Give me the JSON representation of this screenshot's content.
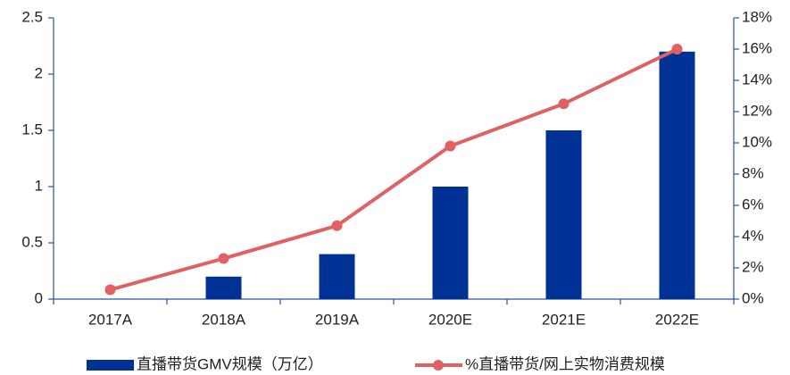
{
  "chart_data": {
    "type": "bar",
    "categories": [
      "2017A",
      "2018A",
      "2019A",
      "2020E",
      "2021E",
      "2022E"
    ],
    "series": [
      {
        "name": "直播带货GMV规模（万亿）",
        "color": "#003194",
        "values": [
          0,
          0.2,
          0.4,
          1.0,
          1.5,
          2.2
        ]
      },
      {
        "name": "%直播带货/网上实物消费规模",
        "color": "#e06163",
        "type": "line",
        "axis": "y2",
        "values": [
          0.6,
          2.6,
          4.7,
          9.8,
          12.5,
          16.0
        ]
      }
    ],
    "ylim": [
      0,
      2.5
    ],
    "yticks": [
      0,
      0.5,
      1,
      1.5,
      2,
      2.5
    ],
    "y2lim": [
      0,
      18
    ],
    "y2ticks": [
      {
        "value": 0,
        "label": "0%"
      },
      {
        "value": 2,
        "label": "2%"
      },
      {
        "value": 4,
        "label": "4%"
      },
      {
        "value": 6,
        "label": "6%"
      },
      {
        "value": 8,
        "label": "8%"
      },
      {
        "value": 10,
        "label": "10%"
      },
      {
        "value": 12,
        "label": "12%"
      },
      {
        "value": 14,
        "label": "14%"
      },
      {
        "value": 16,
        "label": "16%"
      },
      {
        "value": 18,
        "label": "18%"
      }
    ],
    "legend": "bottom"
  }
}
